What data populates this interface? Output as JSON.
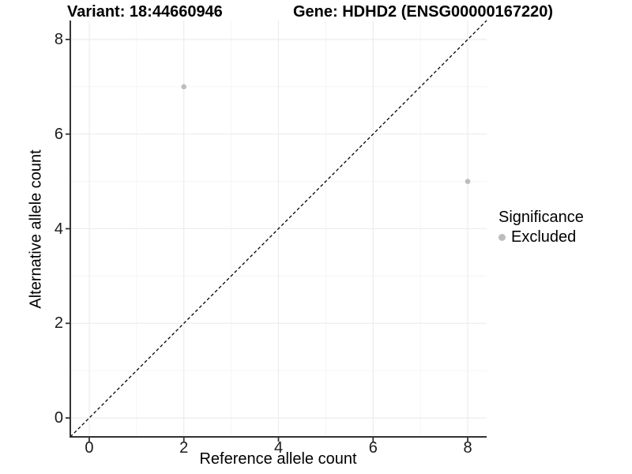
{
  "chart_data": {
    "type": "scatter",
    "title_left": "Variant: 18:44660946",
    "title_right": "Gene: HDHD2 (ENSG00000167220)",
    "xlabel": "Reference allele count",
    "ylabel": "Alternative allele count",
    "xlim": [
      -0.4,
      8.4
    ],
    "ylim": [
      -0.4,
      8.4
    ],
    "x_ticks": [
      0,
      2,
      4,
      6,
      8
    ],
    "y_ticks": [
      0,
      2,
      4,
      6,
      8
    ],
    "x_minor_ticks": [
      1,
      3,
      5,
      7
    ],
    "y_minor_ticks": [
      1,
      3,
      5,
      7
    ],
    "grid": true,
    "series": [
      {
        "name": "Excluded",
        "color": "#bdbdbd",
        "points": [
          {
            "x": 2,
            "y": 7
          },
          {
            "x": 8,
            "y": 5
          }
        ]
      }
    ],
    "reference_line": {
      "kind": "identity y=x",
      "x1": -0.4,
      "y1": -0.4,
      "x2": 8.4,
      "y2": 8.4,
      "style": "dashed",
      "color": "#000000"
    },
    "legend": {
      "title": "Significance",
      "position": "right",
      "items": [
        {
          "label": "Excluded",
          "color": "#bdbdbd",
          "marker": "circle"
        }
      ]
    }
  },
  "style": {
    "axis_color": "#333333",
    "grid_major_color": "#ebebeb",
    "grid_minor_color": "#f4f4f4",
    "point_radius": 3.3,
    "background": "#ffffff"
  }
}
